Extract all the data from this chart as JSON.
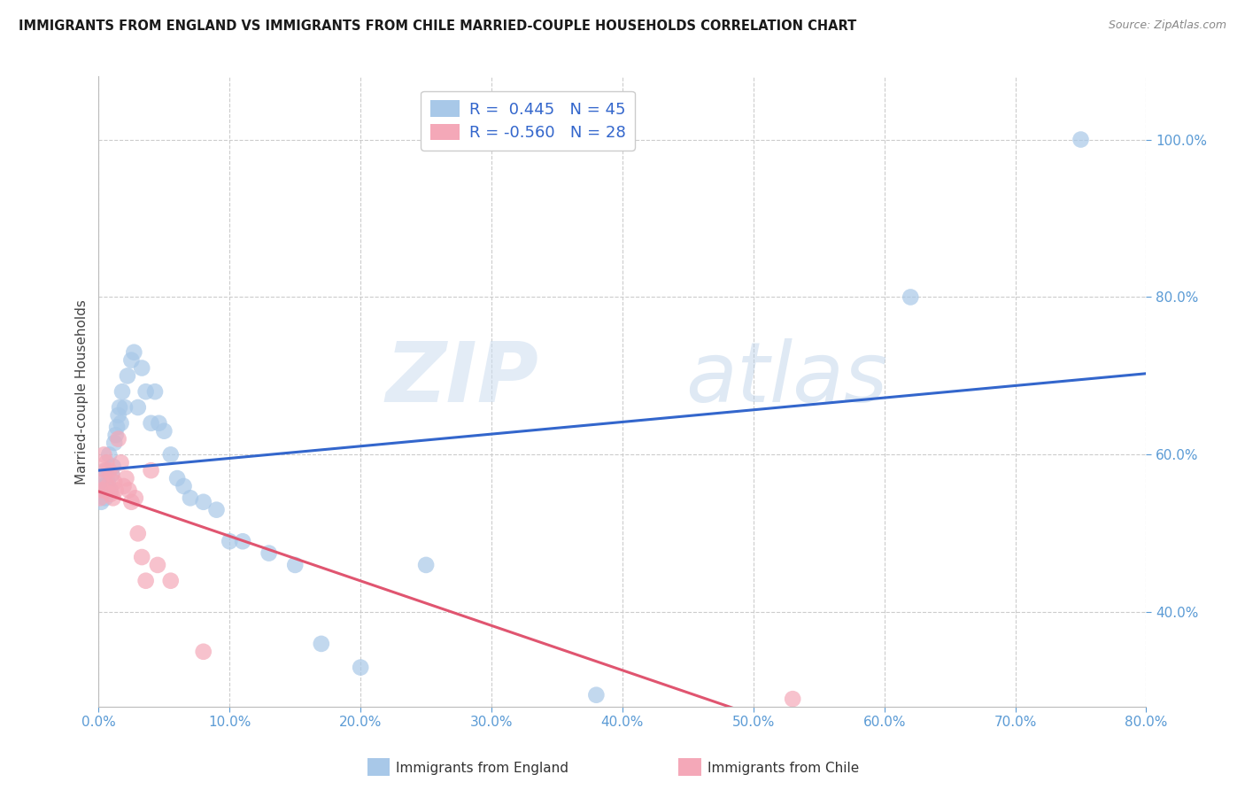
{
  "title": "IMMIGRANTS FROM ENGLAND VS IMMIGRANTS FROM CHILE MARRIED-COUPLE HOUSEHOLDS CORRELATION CHART",
  "source": "Source: ZipAtlas.com",
  "ylabel": "Married-couple Households",
  "legend_england": "Immigrants from England",
  "legend_chile": "Immigrants from Chile",
  "R_england": 0.445,
  "N_england": 45,
  "R_chile": -0.56,
  "N_chile": 28,
  "color_england": "#a8c8e8",
  "color_chile": "#f4a8b8",
  "line_color_england": "#3366cc",
  "line_color_chile": "#e05570",
  "watermark_zip": "ZIP",
  "watermark_atlas": "atlas",
  "xlim": [
    0.0,
    0.8
  ],
  "ylim": [
    0.28,
    1.08
  ],
  "yticks": [
    0.4,
    0.6,
    0.8,
    1.0
  ],
  "xticks": [
    0.0,
    0.1,
    0.2,
    0.3,
    0.4,
    0.5,
    0.6,
    0.7,
    0.8
  ],
  "england_x": [
    0.001,
    0.002,
    0.003,
    0.004,
    0.005,
    0.006,
    0.007,
    0.008,
    0.009,
    0.01,
    0.011,
    0.012,
    0.013,
    0.014,
    0.015,
    0.016,
    0.017,
    0.018,
    0.02,
    0.022,
    0.025,
    0.027,
    0.03,
    0.033,
    0.036,
    0.04,
    0.043,
    0.046,
    0.05,
    0.055,
    0.06,
    0.065,
    0.07,
    0.08,
    0.09,
    0.1,
    0.11,
    0.13,
    0.15,
    0.17,
    0.2,
    0.25,
    0.38,
    0.62,
    0.75
  ],
  "england_y": [
    0.555,
    0.54,
    0.56,
    0.57,
    0.545,
    0.58,
    0.565,
    0.6,
    0.555,
    0.575,
    0.585,
    0.615,
    0.625,
    0.635,
    0.65,
    0.66,
    0.64,
    0.68,
    0.66,
    0.7,
    0.72,
    0.73,
    0.66,
    0.71,
    0.68,
    0.64,
    0.68,
    0.64,
    0.63,
    0.6,
    0.57,
    0.56,
    0.545,
    0.54,
    0.53,
    0.49,
    0.49,
    0.475,
    0.46,
    0.36,
    0.33,
    0.46,
    0.295,
    0.8,
    1.0
  ],
  "chile_x": [
    0.001,
    0.002,
    0.003,
    0.004,
    0.005,
    0.006,
    0.007,
    0.008,
    0.009,
    0.01,
    0.011,
    0.012,
    0.013,
    0.015,
    0.017,
    0.019,
    0.021,
    0.023,
    0.025,
    0.028,
    0.03,
    0.033,
    0.036,
    0.04,
    0.045,
    0.055,
    0.08,
    0.53
  ],
  "chile_y": [
    0.545,
    0.565,
    0.555,
    0.6,
    0.58,
    0.59,
    0.56,
    0.58,
    0.55,
    0.575,
    0.545,
    0.565,
    0.555,
    0.62,
    0.59,
    0.56,
    0.57,
    0.555,
    0.54,
    0.545,
    0.5,
    0.47,
    0.44,
    0.58,
    0.46,
    0.44,
    0.35,
    0.29
  ]
}
